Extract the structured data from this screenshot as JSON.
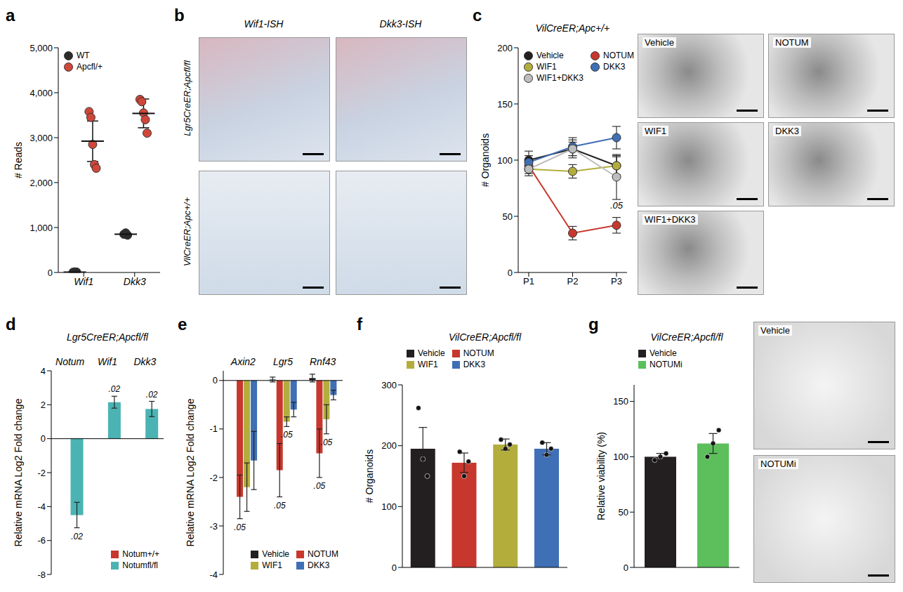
{
  "chart_data": [
    {
      "panel": "a",
      "type": "scatter",
      "categories": [
        "Wif1",
        "Dkk3"
      ],
      "y_label": "# Reads",
      "ylim": [
        0,
        5000
      ],
      "yticks": [
        0,
        {
          "value": 1000,
          "label": "1,000"
        },
        {
          "value": 2000,
          "label": "2,000"
        },
        {
          "value": 3000,
          "label": "3,000"
        },
        {
          "value": 4000,
          "label": "4,000"
        },
        {
          "value": 5000,
          "label": "5,000"
        }
      ],
      "legend": "upper left",
      "marker": "circle",
      "series": [
        {
          "name": "WT",
          "color": "#2b2b2b",
          "values": [
            [
              5,
              12,
              8
            ],
            [
              850,
              880,
              830
            ]
          ],
          "mean": [
            8,
            853
          ],
          "error": [
            4,
            25
          ]
        },
        {
          "name": "Apcfl/+",
          "color": "#d0473a",
          "values": [
            [
              3580,
              3450,
              2850,
              2400,
              2320
            ],
            [
              3850,
              3800,
              3550,
              3400,
              3100
            ]
          ],
          "mean": [
            2920,
            3540
          ],
          "error": [
            450,
            320
          ]
        }
      ]
    },
    {
      "panel": "c",
      "type": "line",
      "title": "VilCreER;Apc+/+",
      "categories": [
        "P1",
        "P2",
        "P3"
      ],
      "y_label": "# Organoids",
      "ylim": [
        0,
        200
      ],
      "yticks": [
        0,
        50,
        100,
        150,
        200
      ],
      "legend": "upper left",
      "marker": "circle",
      "series": [
        {
          "name": "Vehicle",
          "color": "#231f20",
          "values": [
            100,
            110,
            95
          ],
          "error": [
            8,
            8,
            8
          ]
        },
        {
          "name": "NOTUM",
          "color": "#c8372d",
          "values": [
            95,
            35,
            42
          ],
          "error": [
            5,
            6,
            7
          ],
          "significance": [
            null,
            null,
            ".05"
          ]
        },
        {
          "name": "WIF1",
          "color": "#b3ae3c",
          "values": [
            92,
            90,
            95
          ],
          "error": [
            6,
            6,
            9
          ]
        },
        {
          "name": "DKK3",
          "color": "#3f6fb5",
          "values": [
            98,
            112,
            120
          ],
          "error": [
            6,
            8,
            10
          ]
        },
        {
          "name": "WIF1+DKK3",
          "color": "#bdbdbd",
          "values": [
            92,
            110,
            85
          ],
          "error": [
            4,
            6,
            20
          ]
        }
      ]
    },
    {
      "panel": "d",
      "type": "bar",
      "title": "Lgr5CreER;Apcfl/fl",
      "categories": [
        "Notum",
        "Wif1",
        "Dkk3"
      ],
      "y_label": "Relative mRNA Log2 Fold change",
      "ylim": [
        -8,
        4
      ],
      "yticks": [
        -8,
        -6,
        -4,
        -2,
        0,
        2,
        4
      ],
      "legend": "lower right",
      "series": [
        {
          "name": "Notum+/+",
          "color": "#c8372d",
          "values": [
            0,
            0,
            0
          ],
          "error": [
            0.15,
            0.12,
            0.05
          ]
        },
        {
          "name": "Notumfl/fl",
          "color": "#4bb3b3",
          "values": [
            -4.5,
            2.15,
            1.75
          ],
          "error": [
            0.75,
            0.35,
            0.45
          ],
          "significance": [
            ".02",
            ".02",
            ".02"
          ]
        }
      ]
    },
    {
      "panel": "e",
      "type": "bar",
      "categories": [
        "Axin2",
        "Lgr5",
        "Rnf43"
      ],
      "y_label": "Relative mRNA Log2 Fold change",
      "ylim": [
        -4,
        0.2
      ],
      "yticks": [
        -4,
        -3,
        -2,
        -1,
        0
      ],
      "legend": "lower right",
      "series": [
        {
          "name": "Vehicle",
          "color": "#231f20",
          "values": [
            0,
            0.02,
            0.05
          ],
          "error": [
            0.05,
            0.05,
            0.08
          ]
        },
        {
          "name": "NOTUM",
          "color": "#c8372d",
          "values": [
            -2.4,
            -1.85,
            -1.5
          ],
          "error": [
            0.45,
            0.55,
            0.5
          ],
          "significance": [
            ".05",
            ".05",
            ".05"
          ]
        },
        {
          "name": "WIF1",
          "color": "#b3ae3c",
          "values": [
            -2.2,
            -0.85,
            -0.8
          ],
          "error": [
            0.5,
            0.1,
            0.3
          ],
          "significance": [
            null,
            ".05",
            ".05"
          ]
        },
        {
          "name": "DKK3",
          "color": "#3f6fb5",
          "values": [
            -1.65,
            -0.6,
            -0.3
          ],
          "error": [
            0.6,
            0.15,
            0.1
          ]
        }
      ]
    },
    {
      "panel": "f",
      "type": "bar",
      "title": "VilCreER;Apcfl/fl",
      "categories": [
        "Vehicle",
        "NOTUM",
        "WIF1",
        "DKK3"
      ],
      "y_label": "# Organoids",
      "ylim": [
        0,
        300
      ],
      "yticks": [
        0,
        100,
        200,
        300
      ],
      "legend": "top",
      "tick_labels": "y",
      "values": [
        195,
        172,
        202,
        195
      ],
      "error": [
        35,
        16,
        9,
        10
      ],
      "points": [
        [
          262,
          178,
          150
        ],
        [
          190,
          150,
          174
        ],
        [
          210,
          195,
          202
        ],
        [
          205,
          185,
          195
        ]
      ],
      "colors": [
        "#231f20",
        "#c8372d",
        "#b3ae3c",
        "#3f6fb5"
      ]
    },
    {
      "panel": "g",
      "type": "bar",
      "title": "VilCreER;Apcfl/fl",
      "categories": [
        "Vehicle",
        "NOTUMi"
      ],
      "y_label": "Relative viability (%)",
      "ylim": [
        0,
        165
      ],
      "yticks": [
        0,
        50,
        100,
        150
      ],
      "legend": "top",
      "tick_labels": "y",
      "values": [
        100,
        112
      ],
      "error": [
        3,
        9
      ],
      "points": [
        [
          97,
          100,
          103
        ],
        [
          100,
          112,
          124
        ]
      ],
      "colors": [
        "#231f20",
        "#5cbf5c"
      ]
    }
  ],
  "images": {
    "b": {
      "panel": "b",
      "columns": [
        "Wif1-ISH",
        "Dkk3-ISH"
      ],
      "rows": [
        "Lgr5CreER;Apcfl/fl",
        "VilCreER;Apc+/+"
      ]
    },
    "c": {
      "labels": [
        "Vehicle",
        "NOTUM",
        "WIF1",
        "DKK3",
        "WIF1+DKK3"
      ]
    },
    "g": {
      "labels": [
        "Vehicle",
        "NOTUMi"
      ]
    }
  }
}
